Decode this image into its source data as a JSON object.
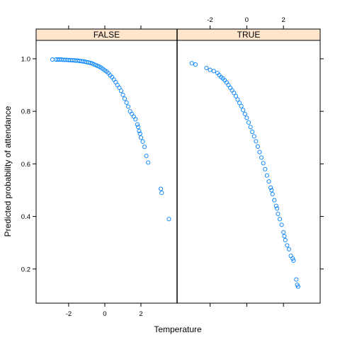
{
  "chart_data": {
    "type": "scatter",
    "xlabel": "Temperature",
    "ylabel": "Predicted probability of attendance",
    "xlim": [
      -3.8,
      4.0
    ],
    "ylim": [
      0.07,
      1.07
    ],
    "x_ticks": [
      -2,
      0,
      2
    ],
    "y_ticks": [
      0.2,
      0.4,
      0.6,
      0.8,
      1.0
    ],
    "x_tick_labels": [
      "-2",
      "0",
      "2"
    ],
    "y_tick_labels": [
      "0.2",
      "0.4",
      "0.6",
      "0.8",
      "1.0"
    ],
    "grid": false,
    "point_color": "#0080ff",
    "strip_color": "#ffe5cc",
    "panels": [
      {
        "name": "FALSE",
        "points": [
          [
            -2.9,
            0.997
          ],
          [
            -2.7,
            0.997
          ],
          [
            -2.6,
            0.997
          ],
          [
            -2.5,
            0.997
          ],
          [
            -2.4,
            0.997
          ],
          [
            -2.3,
            0.996
          ],
          [
            -2.2,
            0.996
          ],
          [
            -2.1,
            0.996
          ],
          [
            -2.0,
            0.995
          ],
          [
            -1.9,
            0.995
          ],
          [
            -1.8,
            0.994
          ],
          [
            -1.7,
            0.994
          ],
          [
            -1.6,
            0.993
          ],
          [
            -1.5,
            0.993
          ],
          [
            -1.4,
            0.992
          ],
          [
            -1.3,
            0.991
          ],
          [
            -1.2,
            0.99
          ],
          [
            -1.1,
            0.989
          ],
          [
            -1.0,
            0.987
          ],
          [
            -0.9,
            0.986
          ],
          [
            -0.8,
            0.984
          ],
          [
            -0.7,
            0.982
          ],
          [
            -0.6,
            0.979
          ],
          [
            -0.5,
            0.976
          ],
          [
            -0.4,
            0.973
          ],
          [
            -0.3,
            0.97
          ],
          [
            -0.2,
            0.966
          ],
          [
            -0.1,
            0.961
          ],
          [
            0.0,
            0.956
          ],
          [
            0.1,
            0.951
          ],
          [
            0.2,
            0.945
          ],
          [
            0.3,
            0.937
          ],
          [
            0.4,
            0.93
          ],
          [
            0.5,
            0.921
          ],
          [
            0.6,
            0.911
          ],
          [
            0.7,
            0.9
          ],
          [
            0.8,
            0.89
          ],
          [
            0.9,
            0.878
          ],
          [
            1.0,
            0.863
          ],
          [
            1.1,
            0.848
          ],
          [
            1.2,
            0.833
          ],
          [
            1.3,
            0.818
          ],
          [
            1.4,
            0.8
          ],
          [
            1.5,
            0.79
          ],
          [
            1.6,
            0.78
          ],
          [
            1.7,
            0.77
          ],
          [
            1.8,
            0.75
          ],
          [
            1.85,
            0.74
          ],
          [
            1.9,
            0.725
          ],
          [
            1.95,
            0.715
          ],
          [
            2.0,
            0.7
          ],
          [
            2.1,
            0.685
          ],
          [
            2.2,
            0.665
          ],
          [
            2.3,
            0.63
          ],
          [
            2.4,
            0.605
          ],
          [
            3.1,
            0.505
          ],
          [
            3.15,
            0.49
          ],
          [
            3.55,
            0.39
          ]
        ]
      },
      {
        "name": "TRUE",
        "points": [
          [
            -3.0,
            0.983
          ],
          [
            -2.8,
            0.978
          ],
          [
            -2.2,
            0.965
          ],
          [
            -2.0,
            0.958
          ],
          [
            -1.8,
            0.953
          ],
          [
            -1.6,
            0.946
          ],
          [
            -1.5,
            0.938
          ],
          [
            -1.4,
            0.93
          ],
          [
            -1.3,
            0.925
          ],
          [
            -1.2,
            0.918
          ],
          [
            -1.1,
            0.91
          ],
          [
            -1.0,
            0.9
          ],
          [
            -0.9,
            0.89
          ],
          [
            -0.8,
            0.88
          ],
          [
            -0.7,
            0.87
          ],
          [
            -0.6,
            0.858
          ],
          [
            -0.5,
            0.845
          ],
          [
            -0.4,
            0.832
          ],
          [
            -0.3,
            0.82
          ],
          [
            -0.2,
            0.805
          ],
          [
            -0.1,
            0.79
          ],
          [
            0.0,
            0.775
          ],
          [
            0.1,
            0.758
          ],
          [
            0.2,
            0.74
          ],
          [
            0.3,
            0.722
          ],
          [
            0.4,
            0.705
          ],
          [
            0.5,
            0.686
          ],
          [
            0.6,
            0.666
          ],
          [
            0.7,
            0.645
          ],
          [
            0.8,
            0.624
          ],
          [
            0.9,
            0.603
          ],
          [
            1.0,
            0.58
          ],
          [
            1.1,
            0.556
          ],
          [
            1.2,
            0.533
          ],
          [
            1.3,
            0.51
          ],
          [
            1.35,
            0.5
          ],
          [
            1.4,
            0.485
          ],
          [
            1.5,
            0.462
          ],
          [
            1.6,
            0.44
          ],
          [
            1.65,
            0.43
          ],
          [
            1.7,
            0.41
          ],
          [
            1.8,
            0.39
          ],
          [
            1.9,
            0.368
          ],
          [
            2.0,
            0.34
          ],
          [
            2.05,
            0.325
          ],
          [
            2.1,
            0.31
          ],
          [
            2.2,
            0.29
          ],
          [
            2.3,
            0.275
          ],
          [
            2.4,
            0.25
          ],
          [
            2.5,
            0.24
          ],
          [
            2.55,
            0.232
          ],
          [
            2.7,
            0.16
          ],
          [
            2.75,
            0.14
          ],
          [
            2.8,
            0.133
          ]
        ]
      }
    ]
  }
}
